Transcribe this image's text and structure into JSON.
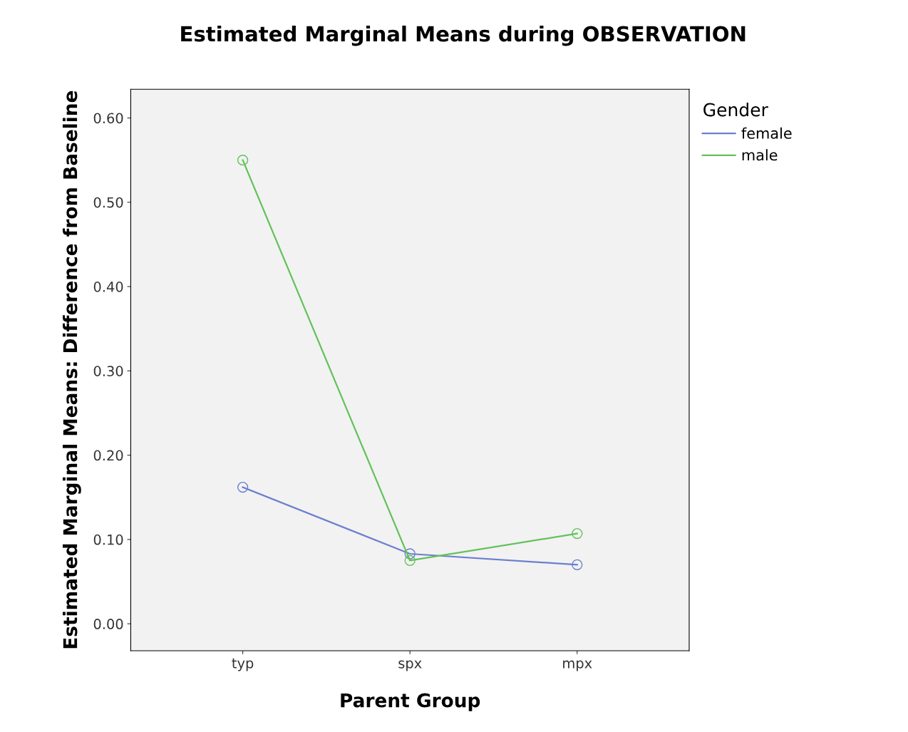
{
  "chart_data": {
    "type": "line",
    "title": "Estimated Marginal Means during OBSERVATION",
    "xlabel": "Parent Group",
    "ylabel": "Estimated Marginal Means: Difference from Baseline",
    "legend_title": "Gender",
    "categories": [
      "typ",
      "spx",
      "mpx"
    ],
    "series": [
      {
        "name": "female",
        "color": "#6b7fcf",
        "values": [
          0.162,
          0.083,
          0.07
        ]
      },
      {
        "name": "male",
        "color": "#63c25a",
        "values": [
          0.55,
          0.075,
          0.107
        ]
      }
    ],
    "ylim": [
      -0.032,
      0.634
    ],
    "yticks": [
      {
        "value": 0,
        "label": "0.00"
      },
      {
        "value": 0.1,
        "label": "0.10"
      },
      {
        "value": 0.2,
        "label": "0.20"
      },
      {
        "value": 0.3,
        "label": "0.30"
      },
      {
        "value": 0.4,
        "label": "0.40"
      },
      {
        "value": 0.5,
        "label": "0.50"
      },
      {
        "value": 0.6,
        "label": "0.60"
      }
    ],
    "marker": "circle",
    "line_style": "solid",
    "grid": false,
    "legend": "top right"
  }
}
